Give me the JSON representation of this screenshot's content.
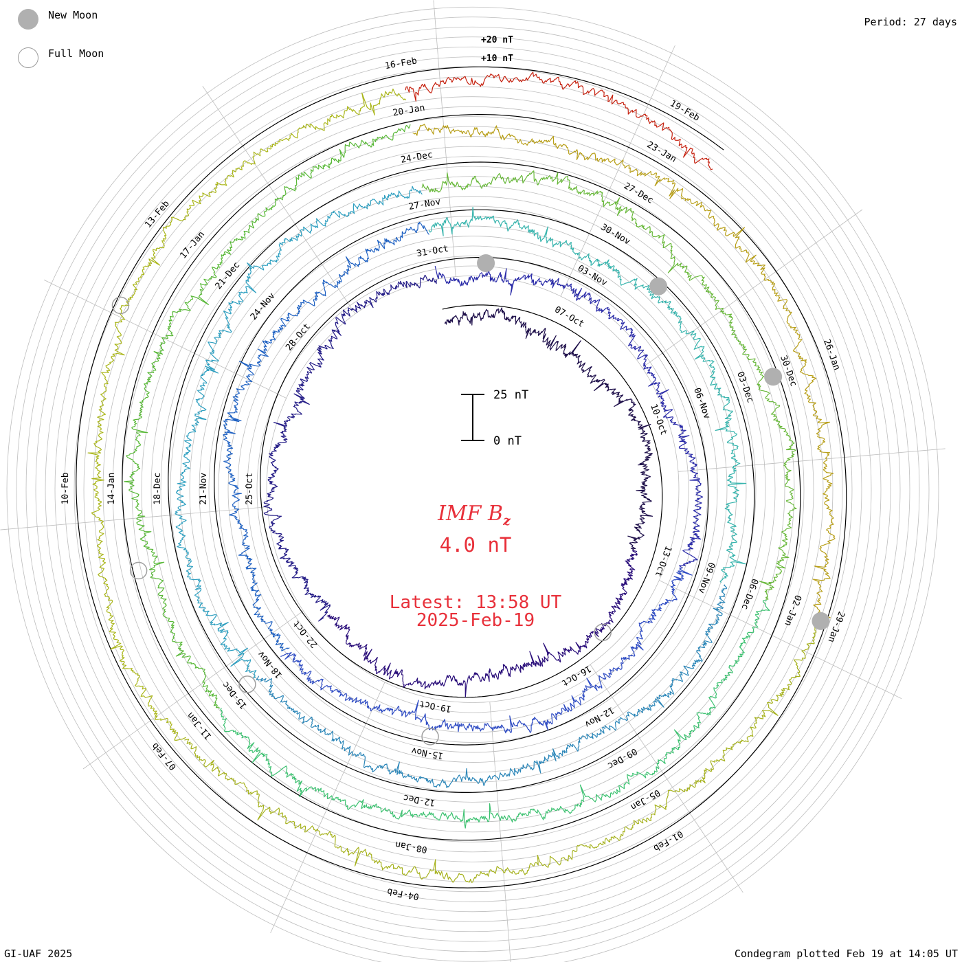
{
  "legend": {
    "new_moon": "New Moon",
    "full_moon": "Full Moon"
  },
  "period_label": "Period: 27 days",
  "credit": "GI-UAF 2025",
  "plotted": "Condegram plotted Feb 19 at 14:05 UT",
  "center": {
    "param_main": "IMF B",
    "param_sub": "z",
    "value": "4.0 nT",
    "latest": "Latest: 13:58 UT",
    "date": "2025-Feb-19"
  },
  "scale_bar": {
    "top_label": "25 nT",
    "bottom_label": "0 nT"
  },
  "colors": {
    "accent_text": "#e8303a",
    "grid": "#bdbdbd",
    "moon": "#b0b0b0",
    "rings": [
      "#1e0f4a",
      "#2d2fae",
      "#34a6b4",
      "#55b53e",
      "#b5a21d",
      "#c0280f"
    ]
  },
  "chart_data": {
    "type": "condegram",
    "parameter": "IMF Bz",
    "period_days": 27,
    "units": "nT",
    "latest_value": 4.0,
    "ring_labels": [
      "+20 nT",
      "+10 nT"
    ],
    "rotations": [
      {
        "index": 1,
        "colors": [
          "#1e0f4a",
          "#2a0e7a",
          "#231b86"
        ],
        "dates": [
          "07-Oct",
          "10-Oct",
          "13-Oct",
          "16-Oct",
          "19-Oct",
          "22-Oct",
          "25-Oct",
          "28-Oct",
          "31-Oct"
        ]
      },
      {
        "index": 2,
        "colors": [
          "#2a2ba8",
          "#2f4cc3",
          "#1d60c2"
        ],
        "dates": [
          "03-Nov",
          "06-Nov",
          "09-Nov",
          "12-Nov",
          "15-Nov",
          "18-Nov",
          "21-Nov",
          "24-Nov",
          "27-Nov"
        ]
      },
      {
        "index": 3,
        "colors": [
          "#37b4ad",
          "#2b86b8",
          "#2e9fc0"
        ],
        "dates": [
          "30-Nov",
          "03-Dec",
          "06-Dec",
          "09-Dec",
          "12-Dec",
          "15-Dec",
          "18-Dec",
          "21-Dec",
          "24-Dec"
        ]
      },
      {
        "index": 4,
        "colors": [
          "#68b83a",
          "#3cc170",
          "#58b837"
        ],
        "dates": [
          "27-Dec",
          "30-Dec",
          "02-Jan",
          "05-Jan",
          "08-Jan",
          "11-Jan",
          "14-Jan",
          "17-Jan",
          "20-Jan"
        ]
      },
      {
        "index": 5,
        "colors": [
          "#b79e17",
          "#a6b21e",
          "#aab61a"
        ],
        "dates": [
          "23-Jan",
          "26-Jan",
          "29-Jan",
          "01-Feb",
          "04-Feb",
          "07-Feb",
          "10-Feb",
          "13-Feb",
          "16-Feb"
        ]
      },
      {
        "index": 6,
        "colors": [
          "#c62210",
          "#c23d0d",
          "#c4540a"
        ],
        "dates": [
          "19-Feb"
        ]
      }
    ],
    "moon_phases": [
      {
        "phase": "new",
        "date": "01-Nov"
      },
      {
        "phase": "new",
        "date": "01-Dec"
      },
      {
        "phase": "new",
        "date": "30-Dec"
      },
      {
        "phase": "new",
        "date": "29-Jan"
      },
      {
        "phase": "full",
        "date": "15-Oct"
      },
      {
        "phase": "full",
        "date": "15-Nov"
      },
      {
        "phase": "full",
        "date": "15-Dec"
      },
      {
        "phase": "full",
        "date": "13-Jan"
      },
      {
        "phase": "full",
        "date": "12-Feb"
      }
    ]
  }
}
